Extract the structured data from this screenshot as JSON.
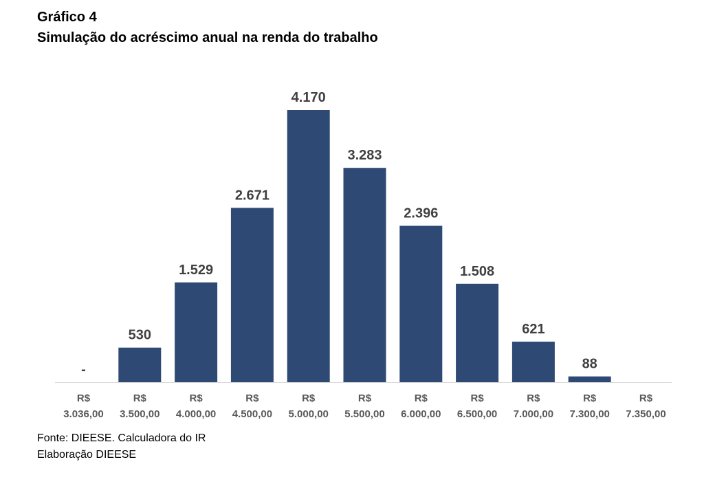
{
  "title_line1": "Gráfico 4",
  "title_line2": "Simulação do acréscimo anual na renda do trabalho",
  "source_line1": "Fonte: DIEESE. Calculadora do IR",
  "source_line2": "Elaboração DIEESE",
  "colors": {
    "bar": "#2E4A74",
    "data_label": "#404040",
    "tick_label": "#595959",
    "axis": "#D9D9D9"
  },
  "chart_data": {
    "type": "bar",
    "title": "Simulação do acréscimo anual na renda do trabalho",
    "categories": [
      "R$ 3.036,00",
      "R$ 3.500,00",
      "R$ 4.000,00",
      "R$ 4.500,00",
      "R$ 5.000,00",
      "R$ 5.500,00",
      "R$ 6.000,00",
      "R$ 6.500,00",
      "R$ 7.000,00",
      "R$ 7.300,00",
      "R$ 7.350,00"
    ],
    "tick_labels": [
      [
        "R$",
        "3.036,00"
      ],
      [
        "R$",
        "3.500,00"
      ],
      [
        "R$",
        "4.000,00"
      ],
      [
        "R$",
        "4.500,00"
      ],
      [
        "R$",
        "5.000,00"
      ],
      [
        "R$",
        "5.500,00"
      ],
      [
        "R$",
        "6.000,00"
      ],
      [
        "R$",
        "6.500,00"
      ],
      [
        "R$",
        "7.000,00"
      ],
      [
        "R$",
        "7.300,00"
      ],
      [
        "R$",
        "7.350,00"
      ]
    ],
    "values": [
      0,
      530,
      1529,
      2671,
      4170,
      3283,
      2396,
      1508,
      621,
      88,
      null
    ],
    "data_labels": [
      "-",
      "530",
      "1.529",
      "2.671",
      "4.170",
      "3.283",
      "2.396",
      "1.508",
      "621",
      "88",
      ""
    ],
    "xlabel": "",
    "ylabel": "",
    "ylim": [
      0,
      4170
    ],
    "grid": false,
    "legend": "none"
  }
}
